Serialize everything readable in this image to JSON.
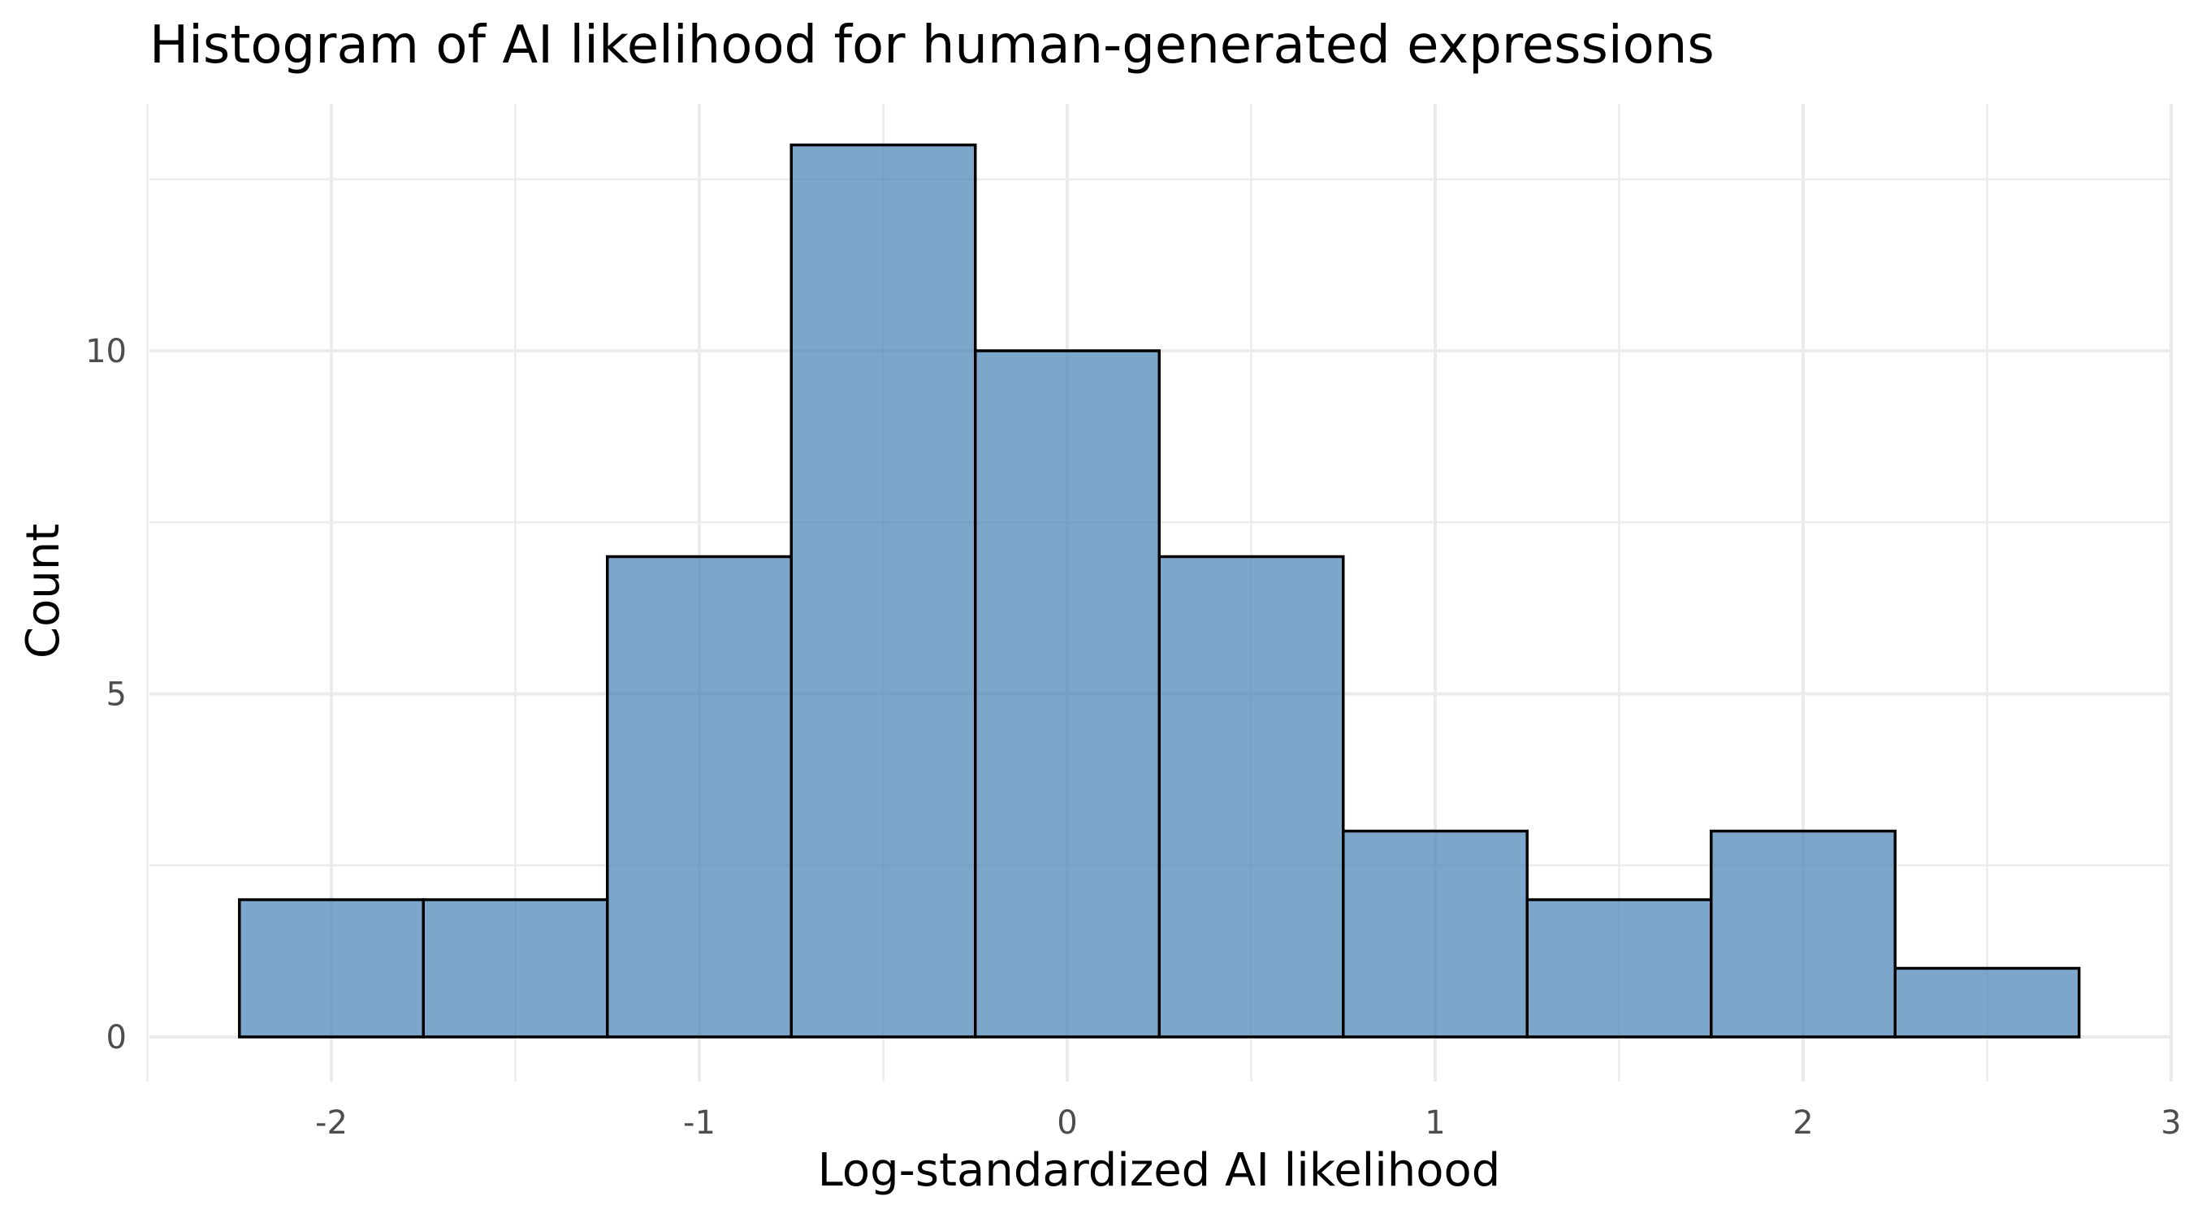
{
  "chart_data": {
    "type": "bar",
    "title": "Histogram of AI likelihood for human-generated expressions",
    "xlabel": "Log-standardized AI likelihood",
    "ylabel": "Count",
    "bin_width": 0.5,
    "bins": [
      {
        "start": -2.25,
        "end": -1.75,
        "count": 2
      },
      {
        "start": -1.75,
        "end": -1.25,
        "count": 2
      },
      {
        "start": -1.25,
        "end": -0.75,
        "count": 7
      },
      {
        "start": -0.75,
        "end": -0.25,
        "count": 13
      },
      {
        "start": -0.25,
        "end": 0.25,
        "count": 10
      },
      {
        "start": 0.25,
        "end": 0.75,
        "count": 7
      },
      {
        "start": 0.75,
        "end": 1.25,
        "count": 3
      },
      {
        "start": 1.25,
        "end": 1.75,
        "count": 2
      },
      {
        "start": 1.75,
        "end": 2.25,
        "count": 3
      },
      {
        "start": 2.25,
        "end": 2.75,
        "count": 1
      }
    ],
    "xlim": [
      -2.5,
      3
    ],
    "ylim": [
      0,
      13
    ],
    "x_ticks": [
      -2,
      -1,
      0,
      1,
      2,
      3
    ],
    "x_tick_labels": [
      "-2",
      "-1",
      "0",
      "1",
      "2",
      "3"
    ],
    "y_ticks": [
      0,
      5,
      10
    ],
    "y_tick_labels": [
      "0",
      "5",
      "10"
    ],
    "grid": true,
    "legend": "none",
    "colors": {
      "bar_fill": "#4682b4",
      "bar_fill_opacity": 0.7,
      "bar_outline": "#000000",
      "grid": "#ebebeb",
      "tick_text": "#4d4d4d"
    }
  }
}
